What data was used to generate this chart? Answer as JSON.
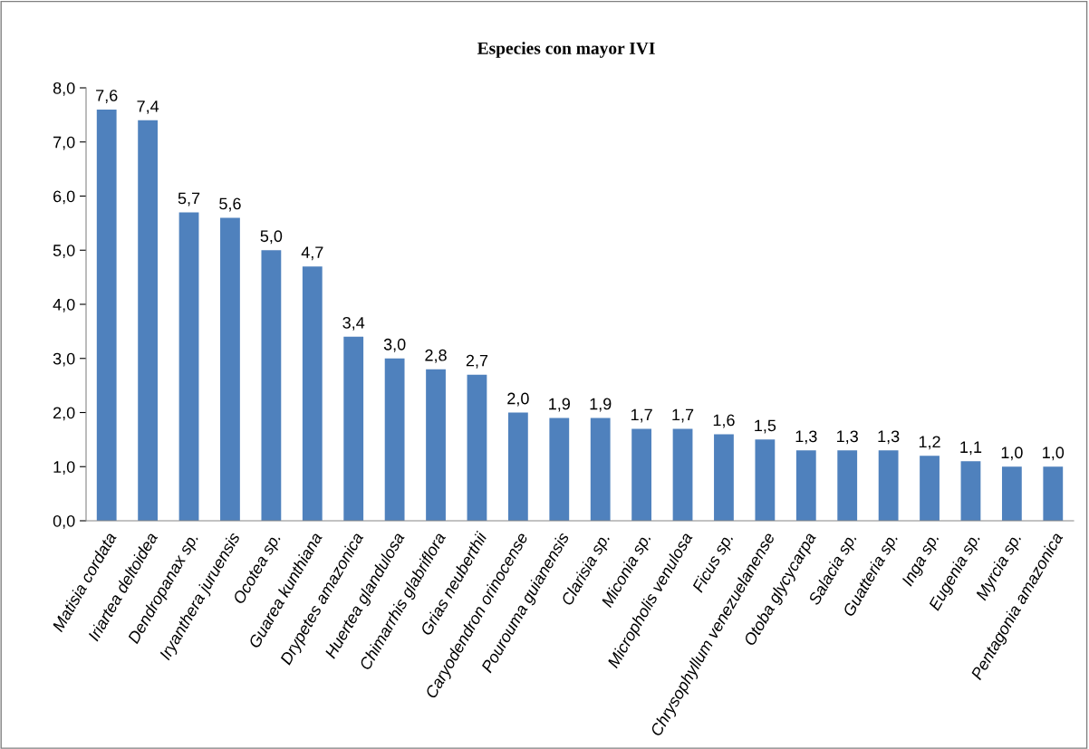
{
  "chart_data": {
    "type": "bar",
    "title": "Especies con mayor IVI",
    "categories": [
      "Matisia cordata",
      "Iriartea deltoidea",
      "Dendropanax sp.",
      "Iryanthera juruensis",
      "Ocotea sp.",
      "Guarea kunthiana",
      "Drypetes amazonica",
      "Huertea glandulosa",
      "Chimarrhis glabriflora",
      "Grias neuberthii",
      "Caryodendron orinocense",
      "Pourouma guianensis",
      "Clarisia sp.",
      "Miconia sp.",
      "Micropholis venulosa",
      "Ficus sp.",
      "Chrysophyllum venezuelanense",
      "Otoba glycycarpa",
      "Salacia sp.",
      "Guatteria sp.",
      "Inga sp.",
      "Eugenia sp.",
      "Myrcia sp.",
      "Pentagonia amazonica"
    ],
    "values": [
      7.6,
      7.4,
      5.7,
      5.6,
      5.0,
      4.7,
      3.4,
      3.0,
      2.8,
      2.7,
      2.0,
      1.9,
      1.9,
      1.7,
      1.7,
      1.6,
      1.5,
      1.3,
      1.3,
      1.3,
      1.2,
      1.1,
      1.0,
      1.0
    ],
    "value_labels": [
      "7,6",
      "7,4",
      "5,7",
      "5,6",
      "5,0",
      "4,7",
      "3,4",
      "3,0",
      "2,8",
      "2,7",
      "2,0",
      "1,9",
      "1,9",
      "1,7",
      "1,7",
      "1,6",
      "1,5",
      "1,3",
      "1,3",
      "1,3",
      "1,2",
      "1,1",
      "1,0",
      "1,0"
    ],
    "color": "#4f81bd",
    "ylim": [
      0,
      8
    ],
    "yticks": [
      {
        "value": 0,
        "label": "0,0"
      },
      {
        "value": 1,
        "label": "1,0"
      },
      {
        "value": 2,
        "label": "2,0"
      },
      {
        "value": 3,
        "label": "3,0"
      },
      {
        "value": 4,
        "label": "4,0"
      },
      {
        "value": 5,
        "label": "5,0"
      },
      {
        "value": 6,
        "label": "6,0"
      },
      {
        "value": 7,
        "label": "7,0"
      },
      {
        "value": 8,
        "label": "8,0"
      }
    ],
    "grid": false,
    "legend": false
  }
}
